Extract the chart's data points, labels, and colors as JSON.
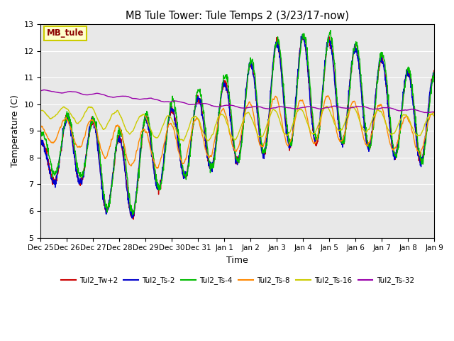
{
  "title": "MB Tule Tower: Tule Temps 2 (3/23/17-now)",
  "xlabel": "Time",
  "ylabel": "Temperature (C)",
  "ylim": [
    5.0,
    13.0
  ],
  "yticks": [
    5.0,
    6.0,
    7.0,
    8.0,
    9.0,
    10.0,
    11.0,
    12.0,
    13.0
  ],
  "plot_bg_color": "#e8e8e8",
  "series_colors": {
    "Tw2": "#cc0000",
    "Ts2": "#0000cc",
    "Ts4": "#00bb00",
    "Ts8": "#ff8800",
    "Ts16": "#cccc00",
    "Ts32": "#9900aa"
  },
  "legend_labels": [
    "Tul2_Tw+2",
    "Tul2_Ts-2",
    "Tul2_Ts-4",
    "Tul2_Ts-8",
    "Tul2_Ts-16",
    "Tul2_Ts-32"
  ],
  "watermark_text": "MB_tule",
  "watermark_color": "#8b0000",
  "watermark_bg": "#ffffcc",
  "watermark_border": "#cccc00",
  "x_start": 0,
  "x_end": 15.0,
  "xtick_positions": [
    0,
    1,
    2,
    3,
    4,
    5,
    6,
    7,
    8,
    9,
    10,
    11,
    12,
    13,
    14,
    15
  ],
  "xtick_labels": [
    "Dec 25",
    "Dec 26",
    "Dec 27",
    "Dec 28",
    "Dec 29",
    "Dec 30",
    "Dec 31",
    "Jan 1",
    "Jan 2",
    "Jan 3",
    "Jan 4",
    "Jan 5",
    "Jan 6",
    "Jan 7",
    "Jan 8",
    "Jan 9"
  ]
}
